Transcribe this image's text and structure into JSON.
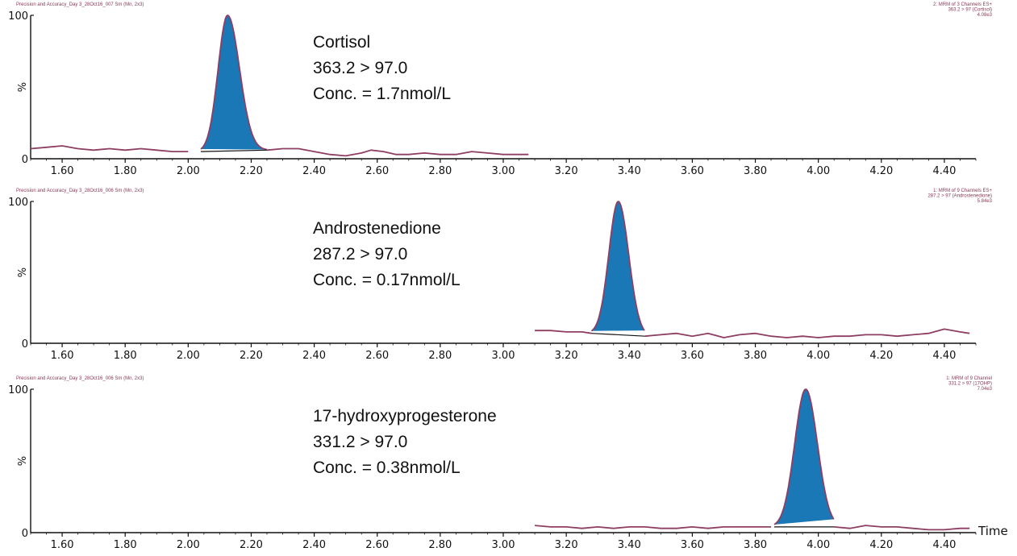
{
  "colors": {
    "trace": "#8e3e63",
    "peak_fill": "#1b78b6",
    "axis": "#111111",
    "header_text": "#8a3a52"
  },
  "chart_data": [
    {
      "type": "line",
      "header_left": "Precision and Accuracy_Day 3_28Oct16_007 Sm (Mn, 2x3)",
      "header_right": [
        "2: MRM of 3 Channels ES+",
        "363.2 > 97 (Cortisol)",
        "4.08e3"
      ],
      "ylabel": "%",
      "ytick_labels": [
        "0",
        "100"
      ],
      "xtick_labels": [
        "1.60",
        "1.80",
        "2.00",
        "2.20",
        "2.40",
        "2.60",
        "2.80",
        "3.00",
        "3.20",
        "3.40",
        "3.60",
        "3.80",
        "4.00",
        "4.20",
        "4.40"
      ],
      "xlabel": "",
      "xlim": [
        1.5,
        4.5
      ],
      "ylim": [
        0,
        100
      ],
      "annotation": [
        "Cortisol",
        "363.2 > 97.0",
        "Conc. = 1.7nmol/L"
      ],
      "trace_range": [
        1.5,
        3.08
      ],
      "baseline": [
        [
          1.5,
          7
        ],
        [
          1.55,
          8
        ],
        [
          1.6,
          9
        ],
        [
          1.65,
          7
        ],
        [
          1.7,
          6
        ],
        [
          1.75,
          7
        ],
        [
          1.8,
          6
        ],
        [
          1.85,
          7
        ],
        [
          1.9,
          6
        ],
        [
          1.95,
          5
        ],
        [
          2.0,
          5
        ]
      ],
      "baseline_after": [
        [
          2.25,
          6
        ],
        [
          2.3,
          7
        ],
        [
          2.35,
          7
        ],
        [
          2.4,
          5
        ],
        [
          2.45,
          3
        ],
        [
          2.5,
          2
        ],
        [
          2.55,
          4
        ],
        [
          2.58,
          6
        ],
        [
          2.62,
          5
        ],
        [
          2.66,
          3
        ],
        [
          2.7,
          3
        ],
        [
          2.75,
          4
        ],
        [
          2.8,
          3
        ],
        [
          2.85,
          3
        ],
        [
          2.9,
          5
        ],
        [
          2.95,
          4
        ],
        [
          3.0,
          3
        ],
        [
          3.05,
          3
        ],
        [
          3.08,
          3
        ]
      ],
      "peak": {
        "apex_rt": 2.125,
        "height": 100,
        "sigma_left": 0.03,
        "sigma_right": 0.038,
        "start": 2.04,
        "end": 2.25,
        "base_start": 5,
        "base_end": 6
      }
    },
    {
      "type": "line",
      "header_left": "Precision and Accuracy_Day 3_28Oct16_006 Sm (Mn, 2x3)",
      "header_right": [
        "1: MRM of 9 Channels ES+",
        "287.2 > 97 (Androstenedione)",
        "5.84e3"
      ],
      "ylabel": "%",
      "ytick_labels": [
        "0",
        "100"
      ],
      "xtick_labels": [
        "1.60",
        "1.80",
        "2.00",
        "2.20",
        "2.40",
        "2.60",
        "2.80",
        "3.00",
        "3.20",
        "3.40",
        "3.60",
        "3.80",
        "4.00",
        "4.20",
        "4.40"
      ],
      "xlabel": "",
      "xlim": [
        1.5,
        4.5
      ],
      "ylim": [
        0,
        100
      ],
      "annotation": [
        "Androstenedione",
        "287.2 > 97.0",
        "Conc. = 0.17nmol/L"
      ],
      "trace_range": [
        3.1,
        4.48
      ],
      "baseline": [
        [
          3.1,
          9
        ],
        [
          3.15,
          9
        ],
        [
          3.2,
          8
        ],
        [
          3.25,
          8
        ],
        [
          3.28,
          7
        ]
      ],
      "baseline_after": [
        [
          3.45,
          5
        ],
        [
          3.5,
          6
        ],
        [
          3.55,
          7
        ],
        [
          3.6,
          5
        ],
        [
          3.65,
          7
        ],
        [
          3.7,
          4
        ],
        [
          3.75,
          6
        ],
        [
          3.8,
          7
        ],
        [
          3.85,
          5
        ],
        [
          3.9,
          4
        ],
        [
          3.95,
          5
        ],
        [
          4.0,
          4
        ],
        [
          4.05,
          5
        ],
        [
          4.1,
          5
        ],
        [
          4.15,
          6
        ],
        [
          4.2,
          6
        ],
        [
          4.25,
          5
        ],
        [
          4.3,
          6
        ],
        [
          4.35,
          7
        ],
        [
          4.4,
          10
        ],
        [
          4.45,
          8
        ],
        [
          4.48,
          7
        ]
      ],
      "peak": {
        "apex_rt": 3.365,
        "height": 100,
        "sigma_left": 0.03,
        "sigma_right": 0.033,
        "start": 3.28,
        "end": 3.45,
        "base_start": 7,
        "base_end": 5
      }
    },
    {
      "type": "line",
      "header_left": "Precision and Accuracy_Day 3_28Oct16_006 Sm (Mn, 2x3)",
      "header_right": [
        "1: MRM of 9 Channel",
        "331.2 > 97 (17OHP)",
        "7.04e3"
      ],
      "ylabel": "%",
      "ytick_labels": [
        "0",
        "100"
      ],
      "xtick_labels": [
        "1.60",
        "1.80",
        "2.00",
        "2.20",
        "2.40",
        "2.60",
        "2.80",
        "3.00",
        "3.20",
        "3.40",
        "3.60",
        "3.80",
        "4.00",
        "4.20",
        "4.40"
      ],
      "xlabel": "Time",
      "xlim": [
        1.5,
        4.5
      ],
      "ylim": [
        0,
        100
      ],
      "annotation": [
        "17-hydroxyprogesterone",
        "331.2 > 97.0",
        "Conc. = 0.38nmol/L"
      ],
      "trace_range": [
        3.1,
        4.48
      ],
      "baseline": [
        [
          3.1,
          5
        ],
        [
          3.15,
          4
        ],
        [
          3.2,
          4
        ],
        [
          3.25,
          3
        ],
        [
          3.3,
          4
        ],
        [
          3.35,
          3
        ],
        [
          3.4,
          4
        ],
        [
          3.45,
          4
        ],
        [
          3.5,
          3
        ],
        [
          3.55,
          3
        ],
        [
          3.6,
          4
        ],
        [
          3.65,
          3
        ],
        [
          3.7,
          4
        ],
        [
          3.75,
          4
        ],
        [
          3.8,
          4
        ],
        [
          3.85,
          4
        ]
      ],
      "baseline_after": [
        [
          4.05,
          4
        ],
        [
          4.1,
          3
        ],
        [
          4.15,
          5
        ],
        [
          4.2,
          4
        ],
        [
          4.25,
          4
        ],
        [
          4.3,
          3
        ],
        [
          4.35,
          2
        ],
        [
          4.4,
          2
        ],
        [
          4.45,
          3
        ],
        [
          4.48,
          3
        ]
      ],
      "peak": {
        "apex_rt": 3.96,
        "height": 100,
        "sigma_left": 0.035,
        "sigma_right": 0.037,
        "start": 3.86,
        "end": 4.05,
        "base_start": 4,
        "base_end": 4
      }
    }
  ]
}
